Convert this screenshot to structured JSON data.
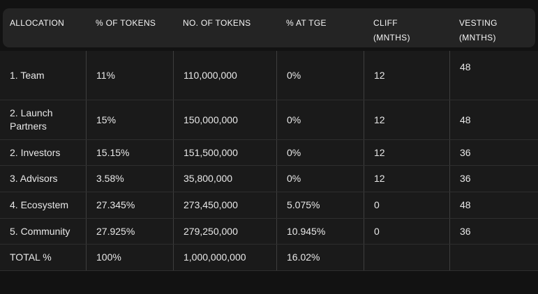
{
  "theme": {
    "page_bg": "#121212",
    "header_bg": "#242424",
    "row_bg": "#1a1a1a",
    "divider_vertical": "#3e3e3e",
    "divider_horizontal": "#2e2e2e",
    "header_text": "#f5f5f5",
    "body_text": "#e8e8e8"
  },
  "table": {
    "columns": [
      {
        "key": "allocation",
        "label": "ALLOCATION"
      },
      {
        "key": "pct_tokens",
        "label": "% OF TOKENS"
      },
      {
        "key": "no_tokens",
        "label": "NO. OF TOKENS"
      },
      {
        "key": "pct_at_tge",
        "label": "% AT TGE"
      },
      {
        "key": "cliff",
        "label": "CLIFF\n(MNTHS)"
      },
      {
        "key": "vesting",
        "label": "VESTING\n(MNTHS)"
      }
    ],
    "rows": [
      [
        "1. Team",
        "11%",
        "110,000,000",
        "0%",
        "12",
        "48"
      ],
      [
        "2. Launch Partners",
        "15%",
        "150,000,000",
        "0%",
        "12",
        "48"
      ],
      [
        "2. Investors",
        "15.15%",
        "151,500,000",
        "0%",
        "12",
        "36"
      ],
      [
        "3. Advisors",
        "3.58%",
        "35,800,000",
        "0%",
        "12",
        "36"
      ],
      [
        "4. Ecosystem",
        "27.345%",
        "273,450,000",
        "5.075%",
        "0",
        "48"
      ],
      [
        "5. Community",
        "27.925%",
        "279,250,000",
        "10.945%",
        "0",
        "36"
      ],
      [
        "TOTAL %",
        "100%",
        "1,000,000,000",
        "16.02%",
        "",
        ""
      ]
    ]
  }
}
